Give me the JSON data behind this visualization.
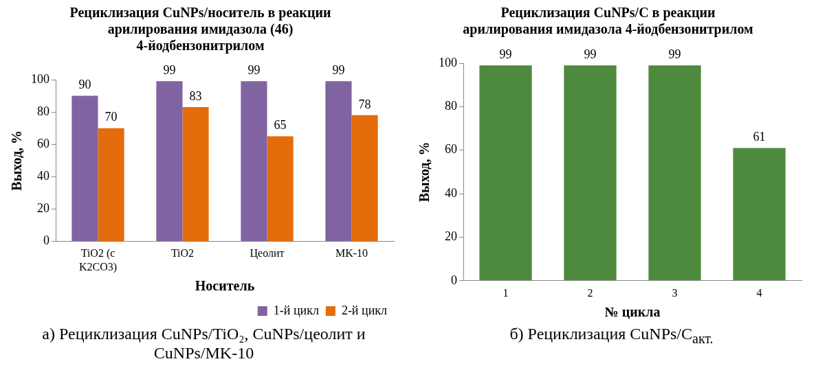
{
  "chart_data": [
    {
      "type": "bar",
      "title": "Рециклизация CuNPs/носитель в реакции арилирования имидазола (46) 4-йодбензонитрилом",
      "xlabel": "Носитель",
      "ylabel": "Выход, %",
      "categories": [
        "TiO2 (с K2CO3)",
        "TiO2",
        "Цеолит",
        "MK-10"
      ],
      "series": [
        {
          "name": "1-й цикл",
          "color": "#8064a2",
          "values": [
            90,
            99,
            99,
            99
          ]
        },
        {
          "name": "2-й цикл",
          "color": "#e46c0a",
          "values": [
            70,
            83,
            65,
            78
          ]
        }
      ],
      "ylim": [
        0,
        100
      ],
      "yticks": [
        0,
        20,
        40,
        60,
        80,
        100
      ],
      "grid": false,
      "legend": "bottom right",
      "data_labels": true,
      "annotations": [
        "а) Рециклизация CuNPs/TiO₂, CuNPs/цеолит и CuNPs/MK-10"
      ]
    },
    {
      "type": "bar",
      "title": "Рециклизация CuNPs/C в реакции арилирования имидазола 4-йодбензонитрилом",
      "xlabel": "№ цикла",
      "ylabel": "Выход, %",
      "categories": [
        "1",
        "2",
        "3",
        "4"
      ],
      "series": [
        {
          "color": "#4e8a3e",
          "values": [
            99,
            99,
            99,
            61
          ]
        }
      ],
      "ylim": [
        0,
        100
      ],
      "yticks": [
        0,
        20,
        40,
        60,
        80,
        100
      ],
      "grid": false,
      "legend": false,
      "data_labels": true,
      "annotations": [
        "б) Рециклизация CuNPs/C$_{акт.}$"
      ]
    }
  ]
}
